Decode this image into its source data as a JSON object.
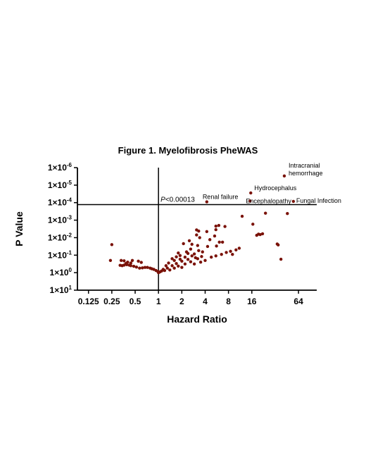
{
  "chart_data": {
    "type": "scatter",
    "title": "Figure 1. Myelofibrosis PheWAS",
    "xlabel": "Hazard Ratio",
    "ylabel": "P Value",
    "x_scale": "log2",
    "y_scale": "log10 (inverted)",
    "x_ticks": [
      0.125,
      0.25,
      0.5,
      1,
      2,
      4,
      8,
      16,
      64
    ],
    "x_tick_labels": [
      "0.125",
      "0.25",
      "0.5",
      "1",
      "2",
      "4",
      "8",
      "16",
      "64"
    ],
    "xlim": [
      0.09,
      110
    ],
    "y_ticks": [
      10.0,
      1.0,
      0.1,
      0.01,
      0.001,
      0.0001,
      1e-05,
      1e-06
    ],
    "y_tick_base": [
      "1×10",
      "1×10",
      "1×10",
      "1×10",
      "1×10",
      "1×10",
      "1×10",
      "1×10"
    ],
    "y_tick_exp": [
      "1",
      "0",
      "-1",
      "-2",
      "-3",
      "-4",
      "-5",
      "-6"
    ],
    "ylim": [
      10,
      1e-06
    ],
    "reference_lines": {
      "hazard_ratio": 1,
      "p_value": 0.00013
    },
    "threshold_label_italic": "P",
    "threshold_label_rest": "<0.00013",
    "point_color": "#7a1208",
    "annotations": [
      {
        "text": "Intracranial",
        "x": 42,
        "p": 3e-06
      },
      {
        "text": "hemorrhage",
        "x": 42,
        "p": 3e-06
      },
      {
        "text": "Hydrocephalus",
        "x": 15.5,
        "p": 2.8e-05
      },
      {
        "text": "Renal failure",
        "x": 4.2,
        "p": 9e-05
      },
      {
        "text": "Encephalopathy",
        "x": 15.2,
        "p": 8e-05
      },
      {
        "text": "Fungal Infection",
        "x": 55,
        "p": 8.5e-05
      }
    ],
    "points": [
      [
        42,
        3e-06
      ],
      [
        15.5,
        2.8e-05
      ],
      [
        4.2,
        9e-05
      ],
      [
        15.2,
        8e-05
      ],
      [
        55,
        8.5e-05
      ],
      [
        24,
        0.0004
      ],
      [
        12,
        0.0006
      ],
      [
        46,
        0.00042
      ],
      [
        16.5,
        0.0017
      ],
      [
        6,
        0.002
      ],
      [
        5.5,
        0.0022
      ],
      [
        7.2,
        0.0023
      ],
      [
        22,
        0.006
      ],
      [
        19.5,
        0.0063
      ],
      [
        20.5,
        0.0067
      ],
      [
        18.5,
        0.0073
      ],
      [
        3.1,
        0.0036
      ],
      [
        3.3,
        0.0042
      ],
      [
        4.2,
        0.0045
      ],
      [
        5.5,
        0.0035
      ],
      [
        3.1,
        0.007
      ],
      [
        5.3,
        0.008
      ],
      [
        3.4,
        0.01
      ],
      [
        4.6,
        0.013
      ],
      [
        6.1,
        0.018
      ],
      [
        2.5,
        0.015
      ],
      [
        2.1,
        0.022
      ],
      [
        2.7,
        0.024
      ],
      [
        3.2,
        0.028
      ],
      [
        4.3,
        0.032
      ],
      [
        5.6,
        0.03
      ],
      [
        6.7,
        0.018
      ],
      [
        2.6,
        0.045
      ],
      [
        3.3,
        0.055
      ],
      [
        3.7,
        0.065
      ],
      [
        2.3,
        0.065
      ],
      [
        1.8,
        0.075
      ],
      [
        2.4,
        0.08
      ],
      [
        2.9,
        0.085
      ],
      [
        1.9,
        0.105
      ],
      [
        2.7,
        0.11
      ],
      [
        3.6,
        0.12
      ],
      [
        1.7,
        0.125
      ],
      [
        2.2,
        0.13
      ],
      [
        3,
        0.14
      ],
      [
        4.8,
        0.13
      ],
      [
        5.5,
        0.11
      ],
      [
        6.5,
        0.09
      ],
      [
        7.5,
        0.07
      ],
      [
        8.5,
        0.06
      ],
      [
        10,
        0.05
      ],
      [
        11,
        0.04
      ],
      [
        9,
        0.09
      ],
      [
        1.5,
        0.16
      ],
      [
        1.9,
        0.17
      ],
      [
        2.4,
        0.175
      ],
      [
        3.2,
        0.16
      ],
      [
        4,
        0.2
      ],
      [
        1.6,
        0.2
      ],
      [
        2,
        0.22
      ],
      [
        2.6,
        0.24
      ],
      [
        3.5,
        0.25
      ],
      [
        1.35,
        0.28
      ],
      [
        1.7,
        0.3
      ],
      [
        2.2,
        0.32
      ],
      [
        2.9,
        0.32
      ],
      [
        1.25,
        0.4
      ],
      [
        1.5,
        0.4
      ],
      [
        1.8,
        0.42
      ],
      [
        1.3,
        0.55
      ],
      [
        1.6,
        0.55
      ],
      [
        2,
        0.5
      ],
      [
        1.15,
        0.65
      ],
      [
        1.4,
        0.7
      ],
      [
        1.1,
        0.8
      ],
      [
        1.05,
        0.9
      ],
      [
        1.2,
        0.75
      ],
      [
        1.0,
        0.95
      ],
      [
        1.0,
        1.0
      ],
      [
        0.98,
        0.85
      ],
      [
        0.93,
        0.75
      ],
      [
        0.87,
        0.65
      ],
      [
        0.82,
        0.6
      ],
      [
        0.78,
        0.55
      ],
      [
        0.72,
        0.5
      ],
      [
        0.67,
        0.5
      ],
      [
        0.62,
        0.53
      ],
      [
        0.57,
        0.55
      ],
      [
        0.52,
        0.48
      ],
      [
        0.48,
        0.43
      ],
      [
        0.44,
        0.4
      ],
      [
        0.42,
        0.37
      ],
      [
        0.39,
        0.35
      ],
      [
        0.36,
        0.37
      ],
      [
        0.34,
        0.4
      ],
      [
        0.32,
        0.38
      ],
      [
        0.44,
        0.28
      ],
      [
        0.4,
        0.25
      ],
      [
        0.6,
        0.26
      ],
      [
        0.55,
        0.22
      ],
      [
        0.33,
        0.2
      ],
      [
        0.36,
        0.21
      ],
      [
        0.46,
        0.2
      ],
      [
        0.38,
        0.3
      ],
      [
        0.24,
        0.2
      ],
      [
        0.25,
        0.025
      ],
      [
        34,
        0.023
      ],
      [
        35,
        0.026
      ],
      [
        38,
        0.17
      ]
    ]
  }
}
